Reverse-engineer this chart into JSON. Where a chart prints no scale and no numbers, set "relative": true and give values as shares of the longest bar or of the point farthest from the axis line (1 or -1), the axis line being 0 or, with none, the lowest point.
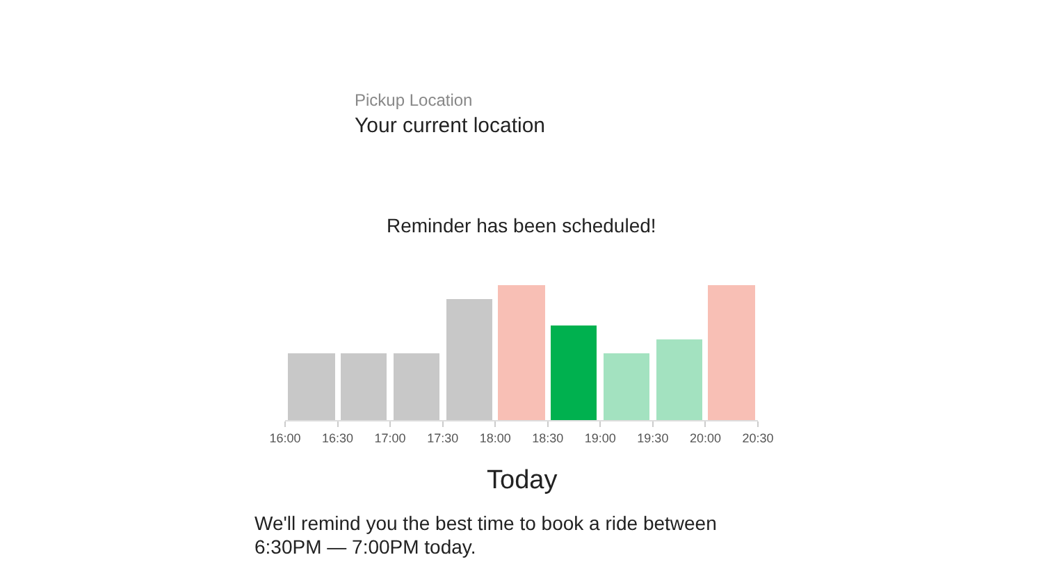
{
  "chart_data": {
    "type": "bar",
    "relative": true,
    "x": [
      16.25,
      16.75,
      17.25,
      17.75,
      18.25,
      18.75,
      19.25,
      19.75,
      20.25
    ],
    "values": [
      0.49,
      0.49,
      0.49,
      0.9,
      1,
      0.7,
      0.49,
      0.6,
      1
    ],
    "colors": [
      "#c8c8c8",
      "#c8c8c8",
      "#c8c8c8",
      "#c8c8c8",
      "#f8bfb5",
      "#00b14f",
      "#a3e2c0",
      "#a3e2c0",
      "#f8bfb5"
    ],
    "xlim": [
      16,
      20.5
    ],
    "xticks": [
      {
        "value": 16,
        "label": "16:00"
      },
      {
        "value": 16.5,
        "label": "16:30"
      },
      {
        "value": 17,
        "label": "17:00"
      },
      {
        "value": 17.5,
        "label": "17:30"
      },
      {
        "value": 18,
        "label": "18:00"
      },
      {
        "value": 18.5,
        "label": "18:30"
      },
      {
        "value": 19,
        "label": "19:00"
      },
      {
        "value": 19.5,
        "label": "19:30"
      },
      {
        "value": 20,
        "label": "20:00"
      },
      {
        "value": 20.5,
        "label": "20:30"
      }
    ],
    "legend": false,
    "annotations": [
      "Pickup Location",
      "Your current location",
      "Reminder has been scheduled!",
      "Today",
      "We'll remind you the best time to book a ride between",
      "6:30PM — 7:00PM today."
    ]
  }
}
